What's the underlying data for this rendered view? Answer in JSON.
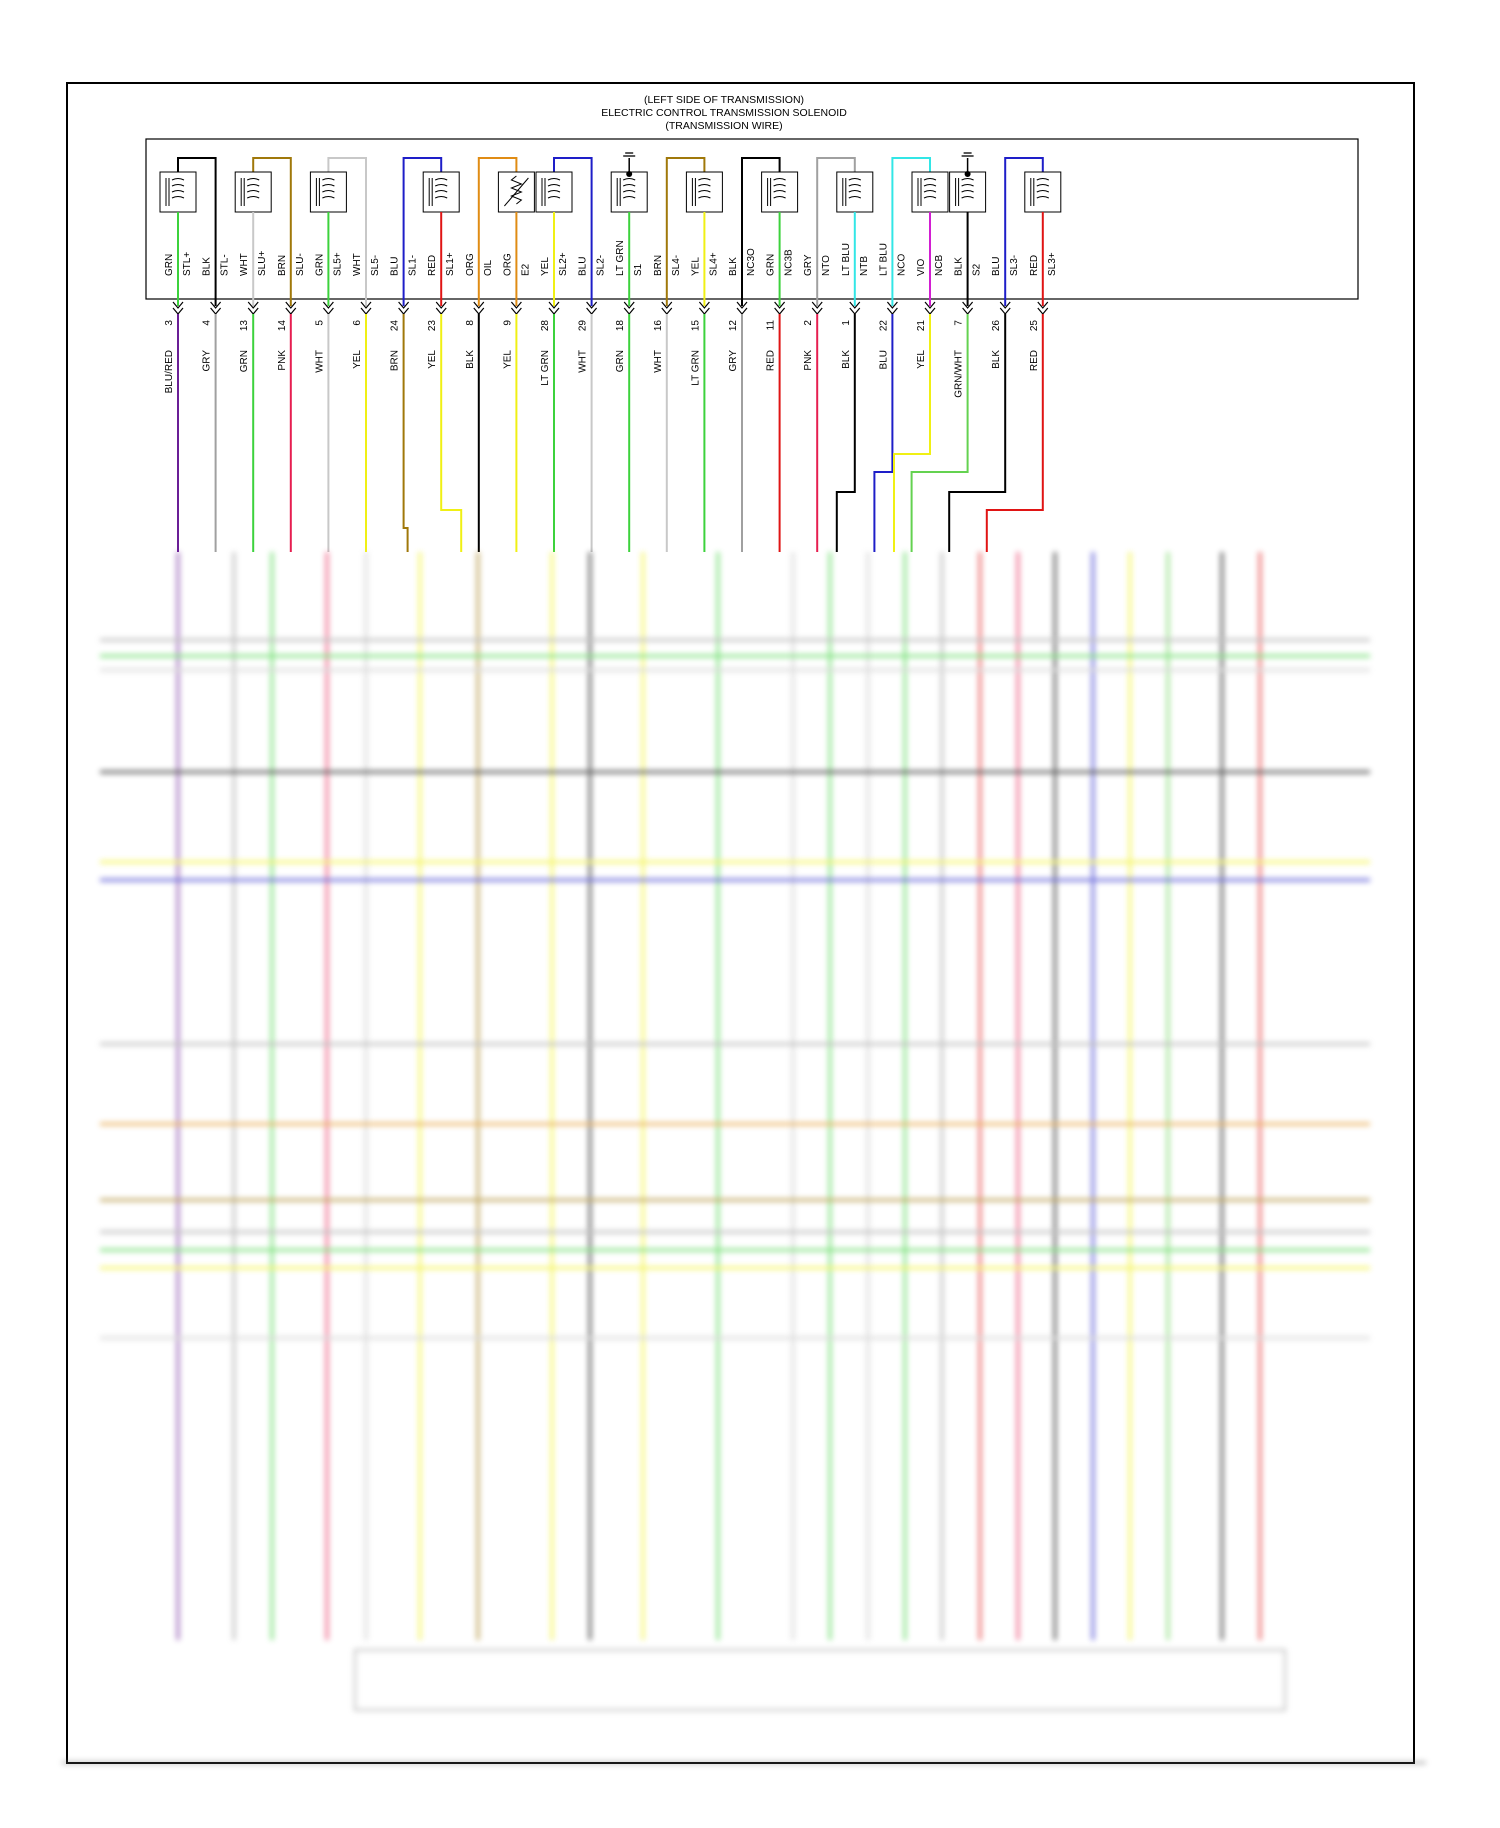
{
  "header": {
    "line1": "(LEFT SIDE OF TRANSMISSION)",
    "line2": "ELECTRIC CONTROL TRANSMISSION SOLENOID",
    "line3": "(TRANSMISSION WIRE)"
  },
  "wire_colors": {
    "BLK": "#000000",
    "GRY": "#a0a0a0",
    "GRN": "#3cd23c",
    "WHT": "#c8c8c8",
    "BRN": "#a0780a",
    "BLU": "#1e1ec8",
    "ORG": "#e08c14",
    "YEL": "#f0f014",
    "LTGRN": "#3cd23c",
    "RED": "#e01414",
    "PNK": "#e61e50",
    "VIO": "#d21ed2",
    "LTBLU": "#32e6e6",
    "BLURED": "#6a1e96",
    "GRNWHT": "#64d250"
  },
  "components": [
    {
      "type": "coil",
      "loop": "BLK"
    },
    {
      "type": "coil",
      "loop": "BRN"
    },
    {
      "type": "coil",
      "loop": "WHT"
    },
    {
      "type": "coil",
      "loop": "BLU"
    },
    {
      "type": "thermistor",
      "loop": "ORG"
    },
    {
      "type": "coil",
      "loop": "BLU"
    },
    {
      "type": "sensor",
      "loop": null
    },
    {
      "type": "coil",
      "loop": "BRN"
    },
    {
      "type": "coil",
      "loop": "BLK"
    },
    {
      "type": "coil",
      "loop": "GRY"
    },
    {
      "type": "coil",
      "loop": "LTBLU"
    },
    {
      "type": "sensor",
      "loop": null
    },
    {
      "type": "coil",
      "loop": "BLU"
    }
  ],
  "pins": [
    {
      "inner": "GRN",
      "inner_color": "GRN",
      "name": "STL+",
      "num": "3",
      "outer": "BLU/RED",
      "outer_color": "BLURED"
    },
    {
      "inner": "BLK",
      "inner_color": "BLK",
      "name": "STL-",
      "num": "4",
      "outer": "GRY",
      "outer_color": "GRY"
    },
    {
      "inner": "WHT",
      "inner_color": "WHT",
      "name": "SLU+",
      "num": "13",
      "outer": "GRN",
      "outer_color": "GRN"
    },
    {
      "inner": "BRN",
      "inner_color": "BRN",
      "name": "SLU-",
      "num": "14",
      "outer": "PNK",
      "outer_color": "PNK"
    },
    {
      "inner": "GRN",
      "inner_color": "GRN",
      "name": "SL5+",
      "num": "5",
      "outer": "WHT",
      "outer_color": "WHT"
    },
    {
      "inner": "WHT",
      "inner_color": "WHT",
      "name": "SL5-",
      "num": "6",
      "outer": "YEL",
      "outer_color": "YEL"
    },
    {
      "inner": "BLU",
      "inner_color": "BLU",
      "name": "SL1-",
      "num": "24",
      "outer": "BRN",
      "outer_color": "BRN"
    },
    {
      "inner": "RED",
      "inner_color": "RED",
      "name": "SL1+",
      "num": "23",
      "outer": "YEL",
      "outer_color": "YEL"
    },
    {
      "inner": "ORG",
      "inner_color": "ORG",
      "name": "OIL",
      "num": "8",
      "outer": "BLK",
      "outer_color": "BLK"
    },
    {
      "inner": "ORG",
      "inner_color": "ORG",
      "name": "E2",
      "num": "9",
      "outer": "YEL",
      "outer_color": "YEL"
    },
    {
      "inner": "YEL",
      "inner_color": "YEL",
      "name": "SL2+",
      "num": "28",
      "outer": "LT GRN",
      "outer_color": "LTGRN"
    },
    {
      "inner": "BLU",
      "inner_color": "BLU",
      "name": "SL2-",
      "num": "29",
      "outer": "WHT",
      "outer_color": "WHT"
    },
    {
      "inner": "LT GRN",
      "inner_color": "LTGRN",
      "name": "S1",
      "num": "18",
      "outer": "GRN",
      "outer_color": "GRN"
    },
    {
      "inner": "BRN",
      "inner_color": "BRN",
      "name": "SL4-",
      "num": "16",
      "outer": "WHT",
      "outer_color": "WHT"
    },
    {
      "inner": "YEL",
      "inner_color": "YEL",
      "name": "SL4+",
      "num": "15",
      "outer": "LT GRN",
      "outer_color": "LTGRN"
    },
    {
      "inner": "BLK",
      "inner_color": "BLK",
      "name": "NC3O",
      "num": "12",
      "outer": "GRY",
      "outer_color": "GRY"
    },
    {
      "inner": "GRN",
      "inner_color": "GRN",
      "name": "NC3B",
      "num": "11",
      "outer": "RED",
      "outer_color": "RED"
    },
    {
      "inner": "GRY",
      "inner_color": "GRY",
      "name": "NTO",
      "num": "2",
      "outer": "PNK",
      "outer_color": "PNK"
    },
    {
      "inner": "LT BLU",
      "inner_color": "LTBLU",
      "name": "NTB",
      "num": "1",
      "outer": "BLK",
      "outer_color": "BLK"
    },
    {
      "inner": "LT BLU",
      "inner_color": "LTBLU",
      "name": "NCO",
      "num": "22",
      "outer": "BLU",
      "outer_color": "BLU"
    },
    {
      "inner": "VIO",
      "inner_color": "VIO",
      "name": "NCB",
      "num": "21",
      "outer": "YEL",
      "outer_color": "YEL"
    },
    {
      "inner": "BLK",
      "inner_color": "BLK",
      "name": "S2",
      "num": "7",
      "outer": "GRN/WHT",
      "outer_color": "GRNWHT"
    },
    {
      "inner": "BLU",
      "inner_color": "BLU",
      "name": "SL3-",
      "num": "26",
      "outer": "BLK",
      "outer_color": "BLK"
    },
    {
      "inner": "RED",
      "inner_color": "RED",
      "name": "SL3+",
      "num": "25",
      "outer": "RED",
      "outer_color": "RED"
    }
  ],
  "footer": {
    "bottom_block": "",
    "page_code": ""
  }
}
